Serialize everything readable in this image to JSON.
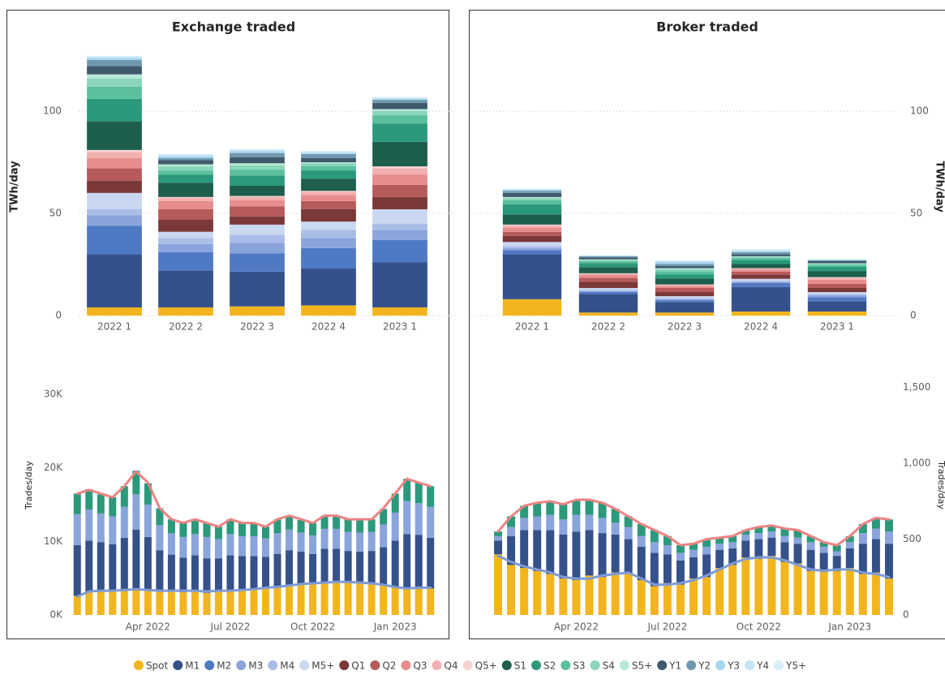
{
  "chart_data": [
    {
      "type": "bar",
      "stacked": true,
      "title": "Exchange traded",
      "y_label": "TWh/day",
      "categories": [
        "2022 1",
        "2022 2",
        "2022 3",
        "2022 4",
        "2023 1"
      ],
      "ylim": [
        0,
        130
      ],
      "yticks": [
        0,
        50,
        100
      ],
      "grid": true,
      "series": [
        {
          "name": "Spot",
          "color": "#f2b51e",
          "values": [
            4,
            4,
            4.5,
            5,
            4
          ]
        },
        {
          "name": "M1",
          "color": "#34518a",
          "values": [
            26,
            18,
            17,
            18,
            22
          ]
        },
        {
          "name": "M2",
          "color": "#5079c4",
          "values": [
            14,
            9,
            9,
            10,
            11
          ]
        },
        {
          "name": "M3",
          "color": "#8aa4dc",
          "values": [
            5,
            4,
            5,
            5,
            5
          ]
        },
        {
          "name": "M4",
          "color": "#a9bde6",
          "values": [
            3,
            3,
            4,
            4,
            3
          ]
        },
        {
          "name": "M5+",
          "color": "#cad7f0",
          "values": [
            8,
            3,
            5,
            4,
            7
          ]
        },
        {
          "name": "Q1",
          "color": "#7a3838",
          "values": [
            6,
            6,
            4,
            6,
            6
          ]
        },
        {
          "name": "Q2",
          "color": "#b65a5a",
          "values": [
            6,
            5,
            5,
            4,
            6
          ]
        },
        {
          "name": "Q3",
          "color": "#e68d8d",
          "values": [
            5,
            4,
            3,
            3,
            5
          ]
        },
        {
          "name": "Q4",
          "color": "#f2b0b0",
          "values": [
            3,
            1.5,
            1.5,
            1.5,
            3
          ]
        },
        {
          "name": "Q5+",
          "color": "#f7d3d0",
          "values": [
            1,
            0.5,
            0.5,
            0.5,
            1
          ]
        },
        {
          "name": "S1",
          "color": "#1e5e4d",
          "values": [
            14,
            7,
            5,
            6,
            12
          ]
        },
        {
          "name": "S2",
          "color": "#2b997b",
          "values": [
            11,
            4,
            5,
            4,
            9
          ]
        },
        {
          "name": "S3",
          "color": "#5cbf9f",
          "values": [
            6,
            2,
            3,
            2,
            4
          ]
        },
        {
          "name": "S4",
          "color": "#8ad5bb",
          "values": [
            4,
            2,
            2,
            1.5,
            2
          ]
        },
        {
          "name": "S5+",
          "color": "#b9e8d6",
          "values": [
            2,
            1,
            1,
            0.5,
            1
          ]
        },
        {
          "name": "Y1",
          "color": "#3e5a6b",
          "values": [
            4,
            2,
            3,
            2,
            3
          ]
        },
        {
          "name": "Y2",
          "color": "#6f98ae",
          "values": [
            3,
            1,
            2,
            2,
            1.5
          ]
        },
        {
          "name": "Y3",
          "color": "#a7d5ee",
          "values": [
            1,
            1,
            1,
            0.5,
            0.5
          ]
        },
        {
          "name": "Y4",
          "color": "#c3e4f6",
          "values": [
            0.5,
            0.5,
            0.5,
            0.5,
            0.5
          ]
        },
        {
          "name": "Y5+",
          "color": "#d8eef9",
          "values": [
            0.5,
            0.5,
            0.5,
            0.5,
            0.5
          ]
        }
      ]
    },
    {
      "type": "bar",
      "stacked": true,
      "title": "Broker traded",
      "y_label": "TWh/day",
      "categories": [
        "2022 1",
        "2022 2",
        "2022 3",
        "2022 4",
        "2023 1"
      ],
      "ylim": [
        0,
        130
      ],
      "yticks": [
        0,
        50,
        100
      ],
      "grid": true,
      "series": [
        {
          "color": "#f2b51e",
          "values": [
            8,
            1.5,
            1.5,
            2,
            2
          ]
        },
        {
          "color": "#34518a",
          "values": [
            22,
            9,
            5,
            12,
            5
          ]
        },
        {
          "color": "#5079c4",
          "values": [
            2,
            1,
            1,
            2,
            2
          ]
        },
        {
          "color": "#8aa4dc",
          "values": [
            1,
            0.5,
            0.5,
            0.5,
            1
          ]
        },
        {
          "color": "#a9bde6",
          "values": [
            1,
            0.5,
            0.5,
            0.5,
            0.5
          ]
        },
        {
          "color": "#cad7f0",
          "values": [
            2,
            1,
            1,
            1,
            1
          ]
        },
        {
          "color": "#7a3838",
          "values": [
            3,
            3,
            2,
            2,
            2
          ]
        },
        {
          "color": "#b65a5a",
          "values": [
            2,
            2,
            2,
            1.5,
            2
          ]
        },
        {
          "color": "#e68d8d",
          "values": [
            2,
            1.5,
            1,
            1,
            2
          ]
        },
        {
          "color": "#f2b0b0",
          "values": [
            1,
            0.5,
            0.5,
            0.5,
            1
          ]
        },
        {
          "color": "#f7d3d0",
          "values": [
            0.5,
            0.2,
            0.2,
            0.2,
            0.3
          ]
        },
        {
          "color": "#1e5e4d",
          "values": [
            5,
            3,
            3,
            2,
            3
          ]
        },
        {
          "color": "#2b997b",
          "values": [
            5,
            2,
            2,
            2,
            2
          ]
        },
        {
          "color": "#5cbf9f",
          "values": [
            2,
            1,
            1.5,
            1,
            1
          ]
        },
        {
          "color": "#8ad5bb",
          "values": [
            1,
            0.5,
            1,
            0.5,
            0.5
          ]
        },
        {
          "color": "#b9e8d6",
          "values": [
            0.5,
            0.3,
            0.5,
            0.3,
            0.3
          ]
        },
        {
          "color": "#3e5a6b",
          "values": [
            2,
            1,
            1,
            1,
            1
          ]
        },
        {
          "color": "#6f98ae",
          "values": [
            1,
            0.5,
            1,
            1,
            0.5
          ]
        },
        {
          "color": "#a7d5ee",
          "values": [
            0.5,
            0.2,
            1,
            0.5,
            0.2
          ]
        },
        {
          "color": "#c3e4f6",
          "values": [
            0.3,
            0.2,
            0.5,
            0.5,
            0.2
          ]
        },
        {
          "color": "#d8eef9",
          "values": [
            0.2,
            0.1,
            0.3,
            0.5,
            0.1
          ]
        }
      ]
    },
    {
      "type": "bar",
      "stacked": true,
      "y_label": "Trades/day",
      "categories": [
        null,
        null,
        null,
        null,
        null,
        null,
        "Apr 2022",
        null,
        null,
        null,
        null,
        null,
        null,
        "Jul 2022",
        null,
        null,
        null,
        null,
        null,
        null,
        "Oct 2022",
        null,
        null,
        null,
        null,
        null,
        null,
        "Jan 2023",
        null,
        null,
        null
      ],
      "ylim": [
        0,
        36000
      ],
      "yticks": [
        {
          "value": 0,
          "label": "0K"
        },
        {
          "value": 10000,
          "label": "10K"
        },
        {
          "value": 20000,
          "label": "20K"
        },
        {
          "value": 30000,
          "label": "30K"
        }
      ],
      "grid": false,
      "series": [
        {
          "color": "#f2b51e",
          "values": [
            2600,
            3100,
            3400,
            3200,
            3500,
            3600,
            3300,
            3200,
            3400,
            3100,
            3300,
            3000,
            3400,
            3200,
            3500,
            3600,
            3800,
            3700,
            4100,
            4300,
            4200,
            4500,
            4600,
            4400,
            4300,
            4400,
            4000,
            3700,
            3500,
            3800,
            3600
          ]
        },
        {
          "color": "#34518a",
          "values": [
            6900,
            7000,
            6500,
            6400,
            7000,
            8000,
            7300,
            5600,
            4800,
            4700,
            4800,
            4700,
            4300,
            4900,
            4500,
            4400,
            4100,
            4600,
            4700,
            4300,
            4100,
            4500,
            4400,
            4300,
            4300,
            4300,
            5200,
            6400,
            7500,
            7100,
            6900
          ]
        },
        {
          "color": "#8aa4dc",
          "values": [
            4200,
            4200,
            3900,
            3800,
            4200,
            4800,
            4400,
            3400,
            2900,
            2800,
            2900,
            2900,
            2600,
            2900,
            2700,
            2700,
            2500,
            2800,
            2800,
            2600,
            2500,
            2700,
            2700,
            2600,
            2600,
            2600,
            3100,
            3800,
            4500,
            4300,
            4200
          ]
        },
        {
          "color": "#2b997b",
          "values": [
            2800,
            2800,
            2600,
            2600,
            2800,
            3200,
            2900,
            2300,
            1900,
            1900,
            1900,
            1900,
            1700,
            2000,
            1800,
            1800,
            1600,
            1900,
            1900,
            1700,
            1700,
            1800,
            1800,
            1700,
            1700,
            1700,
            2100,
            2600,
            3000,
            2800,
            2800
          ]
        },
        {
          "type": "line",
          "color": "#ec8383",
          "values": [
            16500,
            17000,
            16500,
            16000,
            17500,
            19500,
            18000,
            14500,
            13000,
            12500,
            13000,
            12500,
            12000,
            13000,
            12500,
            12500,
            12000,
            13000,
            13500,
            13000,
            12500,
            13500,
            13500,
            13000,
            13000,
            13000,
            14500,
            16500,
            18500,
            18000,
            17500
          ]
        },
        {
          "type": "line",
          "color": "#7e9bd6",
          "values": [
            2500,
            3200,
            3300,
            3300,
            3400,
            3500,
            3400,
            3300,
            3300,
            3300,
            3300,
            3200,
            3300,
            3300,
            3400,
            3500,
            3700,
            3800,
            4000,
            4200,
            4300,
            4400,
            4500,
            4500,
            4400,
            4300,
            4100,
            3800,
            3600,
            3700,
            3700
          ]
        }
      ]
    },
    {
      "type": "bar",
      "stacked": true,
      "y_label": "Trades/day",
      "categories": [
        null,
        null,
        null,
        null,
        null,
        null,
        "Apr 2022",
        null,
        null,
        null,
        null,
        null,
        null,
        "Jul 2022",
        null,
        null,
        null,
        null,
        null,
        null,
        "Oct 2022",
        null,
        null,
        null,
        null,
        null,
        null,
        "Jan 2023",
        null,
        null,
        null
      ],
      "ylim": [
        0,
        1750
      ],
      "yticks": [
        0,
        500,
        {
          "value": 1000,
          "label": "1,000"
        },
        {
          "value": 1500,
          "label": "1,500"
        }
      ],
      "grid": false,
      "series": [
        {
          "color": "#f2b51e",
          "values": [
            400,
            330,
            310,
            290,
            270,
            240,
            230,
            260,
            250,
            280,
            270,
            230,
            190,
            210,
            200,
            240,
            250,
            310,
            330,
            380,
            370,
            390,
            350,
            340,
            290,
            300,
            290,
            310,
            270,
            280,
            240
          ]
        },
        {
          "color": "#34518a",
          "values": [
            90,
            190,
            250,
            270,
            290,
            290,
            320,
            300,
            290,
            250,
            230,
            220,
            220,
            190,
            160,
            140,
            150,
            120,
            110,
            110,
            130,
            120,
            130,
            130,
            140,
            110,
            100,
            130,
            200,
            220,
            230
          ]
        },
        {
          "color": "#8aa4dc",
          "values": [
            30,
            60,
            80,
            90,
            100,
            100,
            110,
            100,
            100,
            80,
            80,
            70,
            70,
            60,
            50,
            50,
            50,
            40,
            40,
            40,
            40,
            40,
            40,
            40,
            50,
            40,
            30,
            40,
            70,
            70,
            80
          ]
        },
        {
          "color": "#2b997b",
          "values": [
            30,
            70,
            80,
            90,
            90,
            100,
            100,
            100,
            100,
            90,
            70,
            80,
            80,
            60,
            50,
            40,
            50,
            40,
            40,
            30,
            40,
            40,
            50,
            50,
            40,
            30,
            40,
            40,
            60,
            70,
            80
          ]
        },
        {
          "type": "line",
          "color": "#ec8383",
          "values": [
            550,
            650,
            720,
            740,
            750,
            730,
            760,
            760,
            740,
            700,
            650,
            600,
            560,
            520,
            460,
            470,
            500,
            510,
            520,
            560,
            580,
            590,
            570,
            560,
            520,
            480,
            460,
            520,
            600,
            640,
            630
          ]
        },
        {
          "type": "line",
          "color": "#7e9bd6",
          "values": [
            390,
            350,
            320,
            300,
            280,
            250,
            240,
            240,
            260,
            270,
            280,
            240,
            200,
            200,
            210,
            230,
            260,
            300,
            340,
            370,
            380,
            380,
            360,
            330,
            300,
            290,
            300,
            300,
            280,
            270,
            250
          ]
        }
      ]
    }
  ]
}
